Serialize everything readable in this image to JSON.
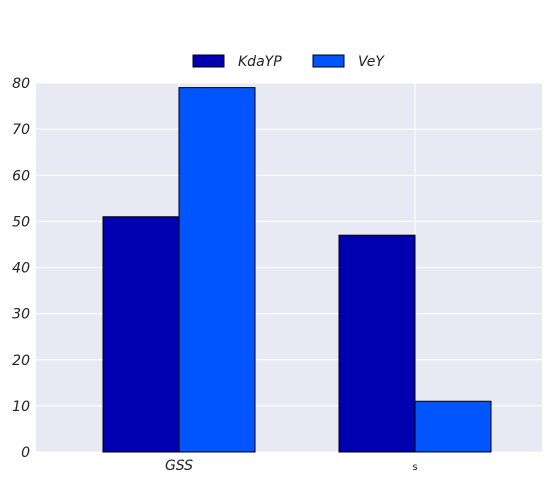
{
  "chart_data": {
    "type": "bar",
    "categories": [
      "GSS",
      "s"
    ],
    "series": [
      {
        "name": "KdaYP",
        "values": [
          51,
          47
        ],
        "color": "#0000b0"
      },
      {
        "name": "VeY",
        "values": [
          79,
          11
        ],
        "color": "#0055ff"
      }
    ],
    "y_ticks": [
      "0",
      "10",
      "20",
      "30",
      "40",
      "50",
      "60",
      "70",
      "80"
    ],
    "ylim": [
      0,
      80
    ],
    "xlabel": "",
    "ylabel": "",
    "title": "",
    "grid": true,
    "legend_position": "top-center",
    "plot_background": "#e8e9f2",
    "grid_color": "#ffffff"
  }
}
